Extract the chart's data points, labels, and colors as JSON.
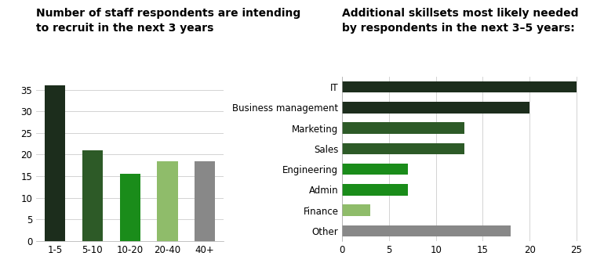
{
  "left": {
    "title_line1": "Number of staff respondents are intending",
    "title_line2": "to recruit in the next 3 years",
    "categories": [
      "1-5",
      "5-10",
      "10-20",
      "20-40",
      "40+"
    ],
    "values": [
      36,
      21,
      15.5,
      18.5,
      18.5
    ],
    "colors": [
      "#1c2d1c",
      "#2d5a27",
      "#1a8c1a",
      "#8fbc6a",
      "#888888"
    ],
    "ylim": [
      0,
      38
    ],
    "yticks": [
      0,
      5,
      10,
      15,
      20,
      25,
      30,
      35
    ]
  },
  "right": {
    "title_line1": "Additional skillsets most likely needed",
    "title_line2": "by respondents in the next 3–5 years:",
    "categories": [
      "IT",
      "Business management",
      "Marketing",
      "Sales",
      "Engineering",
      "Admin",
      "Finance",
      "Other"
    ],
    "values": [
      25,
      20,
      13,
      13,
      7,
      7,
      3,
      18
    ],
    "colors": [
      "#1c2d1c",
      "#1c2d1c",
      "#2d5a27",
      "#2d5a27",
      "#1a8c1a",
      "#1a8c1a",
      "#8fbc6a",
      "#888888"
    ],
    "xlim": [
      0,
      26
    ],
    "xticks": [
      0,
      5,
      10,
      15,
      20,
      25
    ]
  },
  "title_fontsize": 10,
  "tick_fontsize": 8.5,
  "background_color": "#ffffff",
  "grid_color": "#cccccc"
}
